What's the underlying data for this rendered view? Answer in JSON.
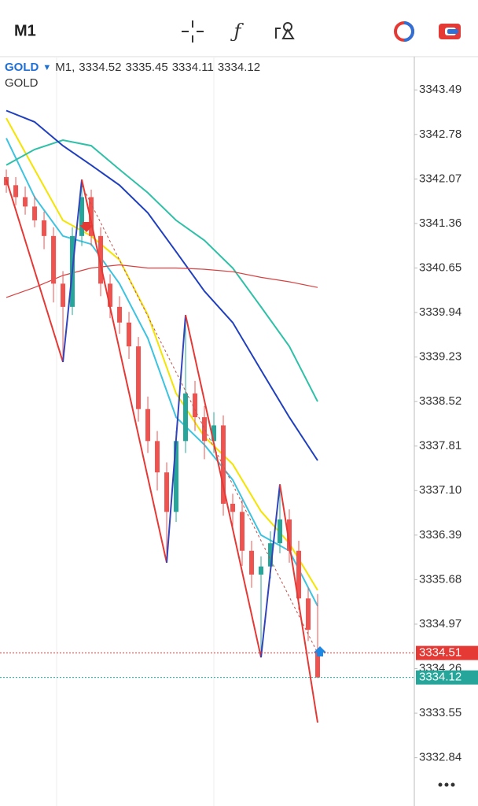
{
  "toolbar": {
    "timeframe": "M1"
  },
  "chart_data": {
    "type": "candlestick",
    "symbol": "GOLD",
    "timeframe_label": "M1,",
    "description": "GOLD",
    "up_color": "#26a69a",
    "down_color": "#ef5350",
    "open": [
      3342.1,
      3341.97,
      3341.78,
      3341.63,
      3341.41,
      3341.16,
      3340.4,
      3340.03,
      3341.16,
      3341.78,
      3341.16,
      3340.4,
      3340.03,
      3339.78,
      3339.4,
      3338.4,
      3337.89,
      3337.39,
      3336.76,
      3337.89,
      3338.65,
      3338.27,
      3337.89,
      3338.14,
      3336.89,
      3336.76,
      3336.14,
      3335.76,
      3335.89,
      3336.26,
      3336.64,
      3336.14,
      3335.38,
      3334.52
    ],
    "high": [
      3342.22,
      3342.1,
      3341.95,
      3341.8,
      3341.55,
      3341.3,
      3340.6,
      3341.3,
      3342.06,
      3341.9,
      3341.3,
      3340.55,
      3340.2,
      3339.95,
      3339.55,
      3338.6,
      3338.05,
      3337.55,
      3338.05,
      3339.9,
      3338.85,
      3338.45,
      3338.35,
      3338.3,
      3337.05,
      3336.95,
      3336.3,
      3336.05,
      3336.45,
      3337.2,
      3336.8,
      3336.3,
      3335.55,
      3335.45
    ],
    "low": [
      3341.85,
      3341.65,
      3341.5,
      3341.3,
      3340.95,
      3340.1,
      3339.15,
      3339.9,
      3341.0,
      3341.0,
      3340.2,
      3339.85,
      3339.6,
      3339.2,
      3338.2,
      3337.7,
      3337.1,
      3335.95,
      3336.6,
      3337.7,
      3338.05,
      3337.6,
      3337.7,
      3336.7,
      3336.5,
      3335.9,
      3335.55,
      3334.44,
      3335.7,
      3336.1,
      3335.95,
      3335.2,
      3334.7,
      3334.11
    ],
    "close": [
      3341.97,
      3341.78,
      3341.63,
      3341.41,
      3341.16,
      3340.4,
      3340.03,
      3341.16,
      3341.78,
      3341.16,
      3340.4,
      3340.03,
      3339.78,
      3339.4,
      3338.4,
      3337.89,
      3337.39,
      3336.76,
      3337.89,
      3338.65,
      3338.27,
      3337.89,
      3338.14,
      3336.89,
      3336.76,
      3336.14,
      3335.76,
      3335.89,
      3336.26,
      3336.64,
      3336.14,
      3335.38,
      3334.88,
      3334.12
    ],
    "lines": [
      {
        "color": "#f4e400",
        "x": [
          0,
          3,
          6,
          9,
          12,
          15,
          18,
          21,
          24,
          27,
          30,
          33
        ],
        "values": [
          3343.04,
          3342.22,
          3341.41,
          3341.16,
          3340.78,
          3339.9,
          3338.65,
          3337.96,
          3337.52,
          3336.77,
          3336.26,
          3335.51
        ]
      },
      {
        "color": "#3cc3e0",
        "x": [
          0,
          3,
          6,
          9,
          12,
          15,
          18,
          21,
          24,
          27,
          30,
          33
        ],
        "values": [
          3342.72,
          3341.78,
          3341.16,
          3341.03,
          3340.4,
          3339.53,
          3338.27,
          3337.83,
          3337.27,
          3336.39,
          3336.14,
          3335.26
        ]
      },
      {
        "color": "#2fc0a8",
        "x": [
          0,
          3,
          6,
          9,
          12,
          15,
          18,
          21,
          24,
          27,
          30,
          33
        ],
        "values": [
          3342.29,
          3342.54,
          3342.69,
          3342.6,
          3342.22,
          3341.85,
          3341.41,
          3341.09,
          3340.65,
          3340.03,
          3339.4,
          3338.52
        ]
      },
      {
        "color": "#1f3fbf",
        "x": [
          0,
          3,
          6,
          9,
          12,
          15,
          18,
          21,
          24,
          27,
          30,
          33
        ],
        "values": [
          3343.16,
          3342.98,
          3342.6,
          3342.29,
          3341.97,
          3341.53,
          3340.91,
          3340.28,
          3339.78,
          3339.02,
          3338.27,
          3337.58
        ]
      },
      {
        "color": "#d84040",
        "x": [
          0,
          3,
          6,
          9,
          12,
          15,
          18,
          21,
          24,
          27,
          30,
          33
        ],
        "values": [
          3340.18,
          3340.34,
          3340.53,
          3340.65,
          3340.7,
          3340.65,
          3340.65,
          3340.63,
          3340.59,
          3340.5,
          3340.43,
          3340.34
        ]
      }
    ],
    "zigzag": {
      "x": [
        0,
        6,
        8,
        17,
        19,
        27,
        29,
        33
      ],
      "values": [
        3342.06,
        3339.15,
        3342.06,
        3335.95,
        3339.9,
        3334.44,
        3337.2,
        3333.4
      ],
      "up_color": "#3344bb",
      "down_color": "#e53935"
    },
    "trendline": {
      "x": [
        8,
        33
      ],
      "values": [
        3341.97,
        3334.51
      ],
      "color": "#c0504d"
    },
    "price_lines": [
      {
        "value": 3334.51,
        "color": "#e53935"
      },
      {
        "value": 3334.12,
        "color": "#26a69a"
      }
    ],
    "xlim": [
      -0.67,
      43.25
    ],
    "ylim": [
      3332.12,
      3344.02
    ],
    "yticks": [
      3343.49,
      3342.78,
      3342.07,
      3341.36,
      3340.65,
      3339.94,
      3339.23,
      3338.52,
      3337.81,
      {
        "value": 3337.1,
        "label": "3337.10"
      },
      3336.39,
      3335.68,
      3334.97,
      3334.26,
      3333.55,
      3332.84
    ]
  }
}
